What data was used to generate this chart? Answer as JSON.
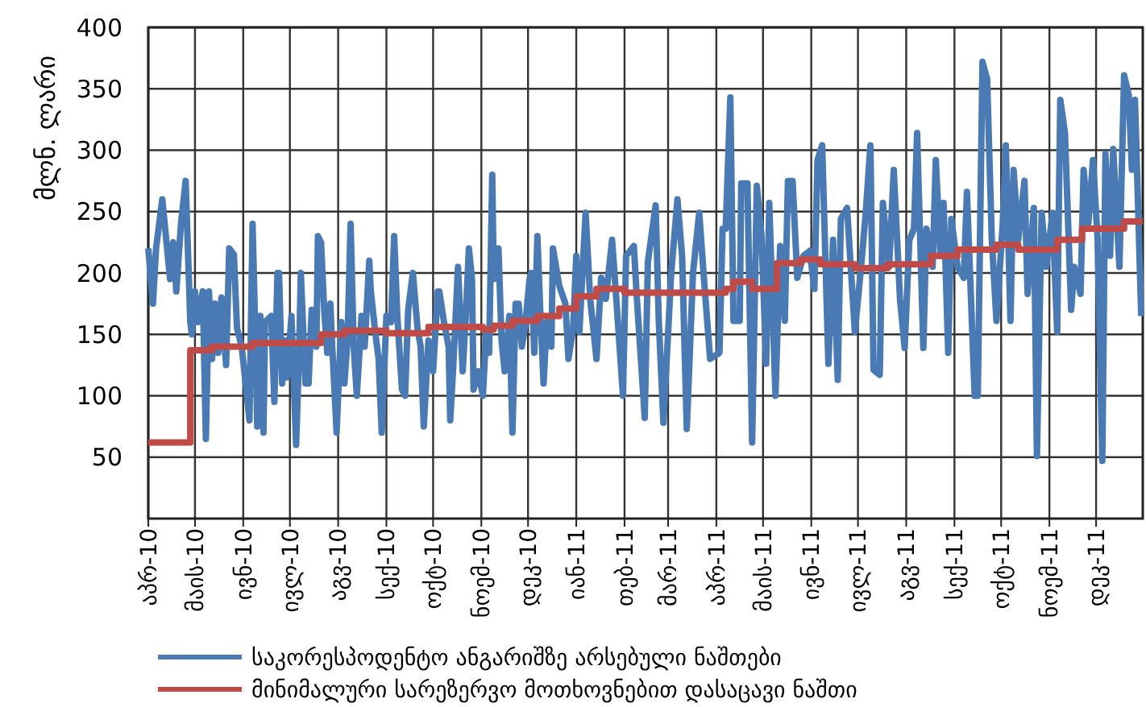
{
  "chart_data": {
    "type": "line",
    "ylabel": "მლნ. ლარი",
    "xlim": [
      "2010-04-01",
      "2011-12-31"
    ],
    "ylim": [
      0,
      400
    ],
    "yticks": [
      50,
      100,
      150,
      200,
      250,
      300,
      350,
      400
    ],
    "xticks": [
      {
        "value": "2010-04-01",
        "label": "აპრ-10"
      },
      {
        "value": "2010-05-01",
        "label": "მაის-10"
      },
      {
        "value": "2010-06-01",
        "label": "ივნ-10"
      },
      {
        "value": "2010-07-01",
        "label": "ივლ-10"
      },
      {
        "value": "2010-08-01",
        "label": "აგვ-10"
      },
      {
        "value": "2010-09-01",
        "label": "სექ-10"
      },
      {
        "value": "2010-10-01",
        "label": "ოქტ-10"
      },
      {
        "value": "2010-11-01",
        "label": "ნოემ-10"
      },
      {
        "value": "2010-12-01",
        "label": "დეკ-10"
      },
      {
        "value": "2011-01-01",
        "label": "იან-11"
      },
      {
        "value": "2011-02-01",
        "label": "თებ-11"
      },
      {
        "value": "2011-03-01",
        "label": "მარ-11"
      },
      {
        "value": "2011-04-01",
        "label": "აპრ-11"
      },
      {
        "value": "2011-05-01",
        "label": "მაის-11"
      },
      {
        "value": "2011-06-01",
        "label": "ივნ-11"
      },
      {
        "value": "2011-07-01",
        "label": "ივლ-11"
      },
      {
        "value": "2011-08-01",
        "label": "აგვ-11"
      },
      {
        "value": "2011-09-01",
        "label": "სექ-11"
      },
      {
        "value": "2011-10-01",
        "label": "ოქტ-11"
      },
      {
        "value": "2011-11-01",
        "label": "ნოემ-11"
      },
      {
        "value": "2011-12-01",
        "label": "დეკ-11"
      }
    ],
    "grid": true,
    "legend": "bottom",
    "series": [
      {
        "name": "საკორესპოდენტო ანგარიშზე არსებული ნაშთები",
        "color": "#4a7ab4",
        "x": [
          "2010-04-01",
          "2010-04-04",
          "2010-04-06",
          "2010-04-10",
          "2010-04-15",
          "2010-04-17",
          "2010-04-19",
          "2010-04-22",
          "2010-04-25",
          "2010-04-28",
          "2010-04-29",
          "2010-05-01",
          "2010-05-03",
          "2010-05-06",
          "2010-05-08",
          "2010-05-10",
          "2010-05-12",
          "2010-05-14",
          "2010-05-16",
          "2010-05-18",
          "2010-05-21",
          "2010-05-23",
          "2010-05-26",
          "2010-05-28",
          "2010-05-31",
          "2010-06-03",
          "2010-06-05",
          "2010-06-07",
          "2010-06-09",
          "2010-06-10",
          "2010-06-12",
          "2010-06-14",
          "2010-06-15",
          "2010-06-19",
          "2010-06-21",
          "2010-06-23",
          "2010-06-24",
          "2010-06-26",
          "2010-06-28",
          "2010-06-29",
          "2010-07-02",
          "2010-07-05",
          "2010-07-07",
          "2010-07-08",
          "2010-07-11",
          "2010-07-13",
          "2010-07-15",
          "2010-07-18",
          "2010-07-19",
          "2010-07-21",
          "2010-07-23",
          "2010-07-25",
          "2010-07-27",
          "2010-07-28",
          "2010-07-31",
          "2010-08-03",
          "2010-08-05",
          "2010-08-07",
          "2010-08-09",
          "2010-08-11",
          "2010-08-13",
          "2010-08-16",
          "2010-08-18",
          "2010-08-21",
          "2010-08-22",
          "2010-08-25",
          "2010-08-27",
          "2010-08-29",
          "2010-09-01",
          "2010-09-04",
          "2010-09-06",
          "2010-09-08",
          "2010-09-11",
          "2010-09-13",
          "2010-09-15",
          "2010-09-18",
          "2010-09-21",
          "2010-09-23",
          "2010-09-25",
          "2010-09-28",
          "2010-10-01",
          "2010-10-04",
          "2010-10-05",
          "2010-10-08",
          "2010-10-11",
          "2010-10-12",
          "2010-10-14",
          "2010-10-17",
          "2010-10-20",
          "2010-10-22",
          "2010-10-24",
          "2010-10-26",
          "2010-10-27",
          "2010-10-30",
          "2010-11-02",
          "2010-11-04",
          "2010-11-06",
          "2010-11-08",
          "2010-11-09",
          "2010-11-12",
          "2010-11-14",
          "2010-11-16",
          "2010-11-19",
          "2010-11-21",
          "2010-11-23",
          "2010-11-25",
          "2010-11-27",
          "2010-11-29",
          "2010-12-02",
          "2010-12-03",
          "2010-12-05",
          "2010-12-07",
          "2010-12-09",
          "2010-12-11",
          "2010-12-13",
          "2010-12-16",
          "2010-12-17",
          "2010-12-21",
          "2010-12-25",
          "2010-12-27",
          "2010-12-30",
          "2011-01-01",
          "2011-01-03",
          "2011-01-07",
          "2011-01-10",
          "2011-01-14",
          "2011-01-17",
          "2011-01-20",
          "2011-01-24",
          "2011-01-26",
          "2011-01-31",
          "2011-02-02",
          "2011-02-07",
          "2011-02-09",
          "2011-02-14",
          "2011-02-16",
          "2011-02-21",
          "2011-02-23",
          "2011-02-26",
          "2011-03-03",
          "2011-03-07",
          "2011-03-10",
          "2011-03-13",
          "2011-03-17",
          "2011-03-21",
          "2011-03-24",
          "2011-03-28",
          "2011-04-03",
          "2011-04-05",
          "2011-04-07",
          "2011-04-10",
          "2011-04-12",
          "2011-04-16",
          "2011-04-17",
          "2011-04-21",
          "2011-04-24",
          "2011-04-27",
          "2011-04-30",
          "2011-05-03",
          "2011-05-05",
          "2011-05-09",
          "2011-05-12",
          "2011-05-15",
          "2011-05-17",
          "2011-05-20",
          "2011-05-23",
          "2011-05-27",
          "2011-05-31",
          "2011-06-03",
          "2011-06-05",
          "2011-06-08",
          "2011-06-12",
          "2011-06-15",
          "2011-06-18",
          "2011-06-20",
          "2011-06-24",
          "2011-06-29",
          "2011-07-03",
          "2011-07-06",
          "2011-07-09",
          "2011-07-11",
          "2011-07-15",
          "2011-07-17",
          "2011-07-21",
          "2011-07-24",
          "2011-07-28",
          "2011-07-31",
          "2011-08-03",
          "2011-08-06",
          "2011-08-08",
          "2011-08-12",
          "2011-08-14",
          "2011-08-18",
          "2011-08-20",
          "2011-08-23",
          "2011-08-25",
          "2011-08-28",
          "2011-08-30",
          "2011-09-03",
          "2011-09-07",
          "2011-09-09",
          "2011-09-14",
          "2011-09-16",
          "2011-09-19",
          "2011-09-22",
          "2011-09-25",
          "2011-09-28",
          "2011-10-02",
          "2011-10-04",
          "2011-10-07",
          "2011-10-09",
          "2011-10-12",
          "2011-10-16",
          "2011-10-18",
          "2011-10-22",
          "2011-10-24",
          "2011-10-27",
          "2011-10-30",
          "2011-11-03",
          "2011-11-06",
          "2011-11-08",
          "2011-11-11",
          "2011-11-15",
          "2011-11-17",
          "2011-11-21",
          "2011-11-23",
          "2011-11-26",
          "2011-11-29",
          "2011-12-02",
          "2011-12-05",
          "2011-12-07",
          "2011-12-10",
          "2011-12-12",
          "2011-12-16",
          "2011-12-19",
          "2011-12-22",
          "2011-12-24",
          "2011-12-26",
          "2011-12-30"
        ],
        "values": [
          220,
          175,
          220,
          260,
          195,
          225,
          185,
          240,
          275,
          160,
          150,
          185,
          160,
          185,
          65,
          185,
          130,
          175,
          135,
          180,
          125,
          220,
          215,
          155,
          140,
          105,
          80,
          240,
          140,
          75,
          165,
          70,
          160,
          165,
          95,
          200,
          200,
          110,
          145,
          115,
          165,
          60,
          140,
          200,
          110,
          110,
          170,
          140,
          230,
          225,
          170,
          135,
          175,
          145,
          70,
          160,
          110,
          145,
          240,
          140,
          100,
          165,
          140,
          210,
          185,
          150,
          130,
          70,
          165,
          160,
          230,
          165,
          105,
          100,
          170,
          200,
          155,
          140,
          75,
          145,
          120,
          185,
          185,
          160,
          140,
          80,
          125,
          205,
          120,
          165,
          220,
          195,
          105,
          120,
          100,
          150,
          135,
          280,
          195,
          220,
          145,
          120,
          165,
          70,
          175,
          175,
          140,
          155,
          195,
          200,
          135,
          230,
          165,
          110,
          160,
          140,
          220,
          190,
          175,
          130,
          155,
          214,
          152,
          249,
          178,
          130,
          196,
          179,
          227,
          192,
          100,
          214,
          222,
          178,
          82,
          209,
          255,
          161,
          78,
          200,
          260,
          214,
          73,
          200,
          249,
          196,
          130,
          135,
          236,
          236,
          343,
          161,
          161,
          273,
          273,
          62,
          271,
          231,
          126,
          257,
          100,
          222,
          161,
          275,
          275,
          196,
          214,
          218,
          187,
          292,
          304,
          126,
          227,
          113,
          244,
          253,
          152,
          205,
          249,
          304,
          121,
          117,
          257,
          205,
          284,
          179,
          139,
          227,
          236,
          314,
          139,
          236,
          205,
          292,
          214,
          257,
          135,
          244,
          205,
          196,
          266,
          100,
          100,
          372,
          358,
          227,
          161,
          240,
          304,
          161,
          284,
          227,
          275,
          183,
          253,
          51,
          249,
          205,
          249,
          152,
          341,
          314,
          170,
          205,
          183,
          284,
          240,
          292,
          227,
          47,
          297,
          214,
          301,
          205,
          361,
          345,
          284,
          341,
          165
        ]
      },
      {
        "name": "მინიმალური სარეზერვო მოთხოვნებით დასაცავი ნაშთი",
        "color": "#be4b48",
        "type": "step",
        "x": [
          "2010-04-01",
          "2010-04-28",
          "2010-05-12",
          "2010-06-07",
          "2010-07-21",
          "2010-08-05",
          "2010-09-01",
          "2010-09-28",
          "2010-11-02",
          "2010-11-09",
          "2010-11-21",
          "2010-12-07",
          "2010-12-21",
          "2011-01-01",
          "2011-01-14",
          "2011-02-01",
          "2011-04-07",
          "2011-04-12",
          "2011-04-24",
          "2011-05-10",
          "2011-05-25",
          "2011-06-07",
          "2011-06-29",
          "2011-07-20",
          "2011-08-17",
          "2011-09-03",
          "2011-09-28",
          "2011-10-12",
          "2011-11-06",
          "2011-11-22",
          "2011-12-19",
          "2011-12-31"
        ],
        "values": [
          62,
          137,
          140,
          143,
          150,
          153,
          151,
          156,
          154,
          157,
          161,
          165,
          171,
          181,
          187,
          184,
          187,
          193,
          187,
          208,
          211,
          207,
          204,
          207,
          214,
          219,
          223,
          219,
          227,
          236,
          242,
          242
        ]
      }
    ]
  }
}
